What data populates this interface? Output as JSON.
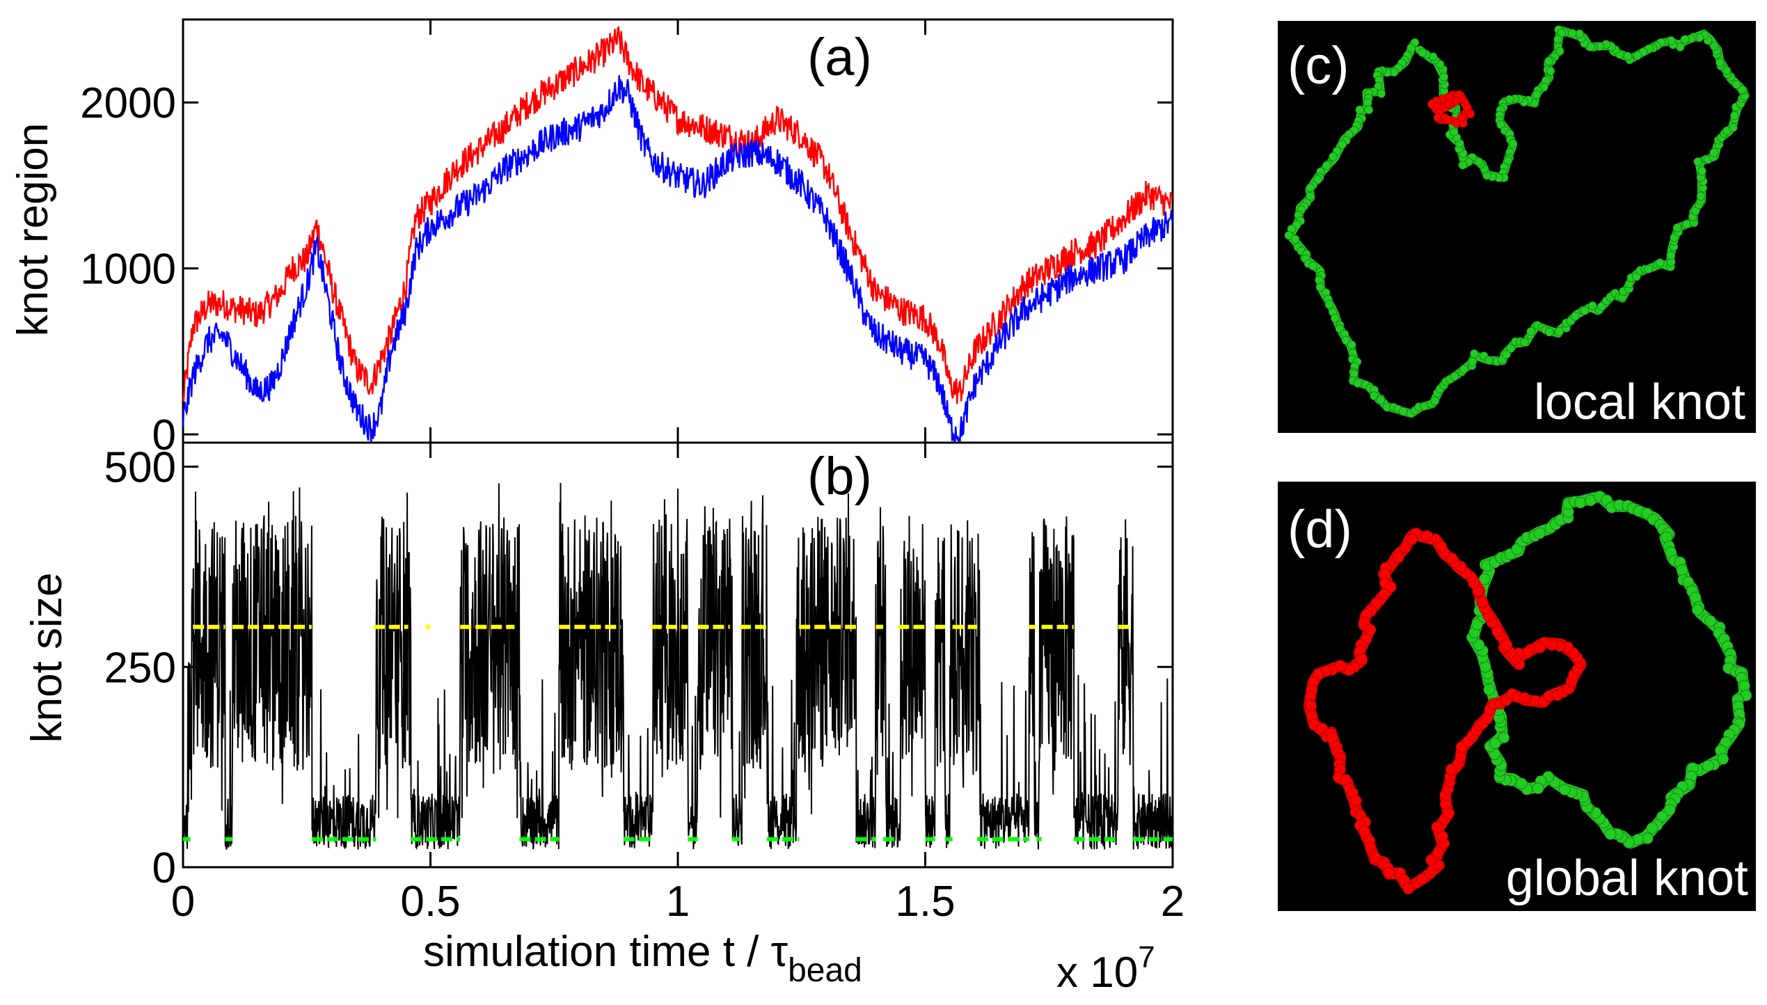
{
  "chart_data": [
    {
      "id": "a",
      "type": "line",
      "panel_label": "(a)",
      "ylabel": "knot region",
      "xlim": [
        0,
        2
      ],
      "ylim": [
        -50,
        2500
      ],
      "yticks": [
        "0",
        "1000",
        "2000"
      ],
      "ytick_values": [
        0,
        1000,
        2000
      ],
      "series": [
        {
          "name": "red",
          "color": "#ff0000",
          "x": [
            0,
            0.02,
            0.05,
            0.08,
            0.1,
            0.12,
            0.15,
            0.18,
            0.2,
            0.22,
            0.25,
            0.27,
            0.28,
            0.3,
            0.32,
            0.35,
            0.38,
            0.4,
            0.42,
            0.45,
            0.47,
            0.5,
            0.55,
            0.6,
            0.65,
            0.7,
            0.75,
            0.8,
            0.85,
            0.88,
            0.9,
            0.93,
            0.95,
            1.0,
            1.05,
            1.1,
            1.15,
            1.2,
            1.25,
            1.3,
            1.35,
            1.38,
            1.4,
            1.43,
            1.45,
            1.5,
            1.53,
            1.55,
            1.57,
            1.6,
            1.65,
            1.7,
            1.75,
            1.8,
            1.85,
            1.9,
            1.95,
            2.0
          ],
          "y": [
            200,
            650,
            780,
            790,
            760,
            750,
            720,
            800,
            870,
            1000,
            1060,
            1260,
            1150,
            900,
            700,
            400,
            300,
            450,
            600,
            900,
            1300,
            1400,
            1600,
            1720,
            1850,
            2000,
            2100,
            2200,
            2300,
            2380,
            2250,
            2100,
            2050,
            1900,
            1850,
            1800,
            1750,
            1900,
            1800,
            1600,
            1200,
            1000,
            850,
            800,
            750,
            700,
            550,
            300,
            250,
            500,
            700,
            900,
            1000,
            1100,
            1150,
            1300,
            1450,
            1380
          ]
        },
        {
          "name": "blue",
          "color": "#0000ff",
          "x": [
            0,
            0.02,
            0.05,
            0.08,
            0.1,
            0.12,
            0.15,
            0.18,
            0.2,
            0.22,
            0.25,
            0.27,
            0.28,
            0.3,
            0.32,
            0.35,
            0.38,
            0.4,
            0.42,
            0.45,
            0.47,
            0.5,
            0.55,
            0.6,
            0.65,
            0.7,
            0.75,
            0.8,
            0.85,
            0.88,
            0.9,
            0.93,
            0.95,
            1.0,
            1.05,
            1.1,
            1.15,
            1.2,
            1.25,
            1.3,
            1.35,
            1.38,
            1.4,
            1.43,
            1.45,
            1.5,
            1.53,
            1.55,
            1.57,
            1.6,
            1.65,
            1.7,
            1.75,
            1.8,
            1.85,
            1.9,
            1.95,
            2.0
          ],
          "y": [
            80,
            350,
            560,
            600,
            500,
            400,
            250,
            300,
            450,
            650,
            900,
            1130,
            1000,
            700,
            400,
            150,
            30,
            150,
            500,
            750,
            1100,
            1250,
            1350,
            1450,
            1600,
            1700,
            1800,
            1850,
            1950,
            2100,
            2050,
            1750,
            1650,
            1550,
            1500,
            1650,
            1700,
            1650,
            1500,
            1300,
            950,
            700,
            600,
            550,
            500,
            450,
            300,
            50,
            0,
            300,
            550,
            750,
            850,
            950,
            1000,
            1050,
            1200,
            1280
          ]
        }
      ]
    },
    {
      "id": "b",
      "type": "line",
      "panel_label": "(b)",
      "ylabel": "knot size",
      "xlabel": "simulation time t / τ",
      "xlabel_sub": "bead",
      "x_multiplier": "x 10",
      "x_multiplier_exp": "7",
      "xlim": [
        0,
        2
      ],
      "ylim": [
        0,
        530
      ],
      "xticks": [
        "0",
        "0.5",
        "1",
        "1.5",
        "2"
      ],
      "xtick_values": [
        0,
        0.5,
        1,
        1.5,
        2
      ],
      "yticks": [
        "0",
        "250",
        "500"
      ],
      "ytick_values": [
        0,
        250,
        500
      ],
      "series": [
        {
          "name": "knot size",
          "color": "#000000",
          "high_intervals": [
            [
              0.01,
              0.085
            ],
            [
              0.1,
              0.26
            ],
            [
              0.39,
              0.46
            ],
            [
              0.56,
              0.68
            ],
            [
              0.76,
              0.89
            ],
            [
              0.95,
              1.02
            ],
            [
              1.04,
              1.11
            ],
            [
              1.13,
              1.18
            ],
            [
              1.24,
              1.36
            ],
            [
              1.4,
              1.42
            ],
            [
              1.45,
              1.5
            ],
            [
              1.52,
              1.54
            ],
            [
              1.55,
              1.61
            ],
            [
              1.71,
              1.72
            ],
            [
              1.73,
              1.8
            ],
            [
              1.89,
              1.92
            ]
          ],
          "high_level": 300,
          "low_level": 30
        },
        {
          "name": "yellow markers",
          "color": "#ffff00",
          "level": 300,
          "segments": [
            [
              0.02,
              0.085
            ],
            [
              0.1,
              0.26
            ],
            [
              0.385,
              0.455
            ],
            [
              0.49,
              0.5
            ],
            [
              0.56,
              0.67
            ],
            [
              0.76,
              0.885
            ],
            [
              0.945,
              1.02
            ],
            [
              1.04,
              1.105
            ],
            [
              1.125,
              1.18
            ],
            [
              1.245,
              1.36
            ],
            [
              1.4,
              1.415
            ],
            [
              1.445,
              1.5
            ],
            [
              1.52,
              1.54
            ],
            [
              1.555,
              1.605
            ],
            [
              1.71,
              1.725
            ],
            [
              1.735,
              1.8
            ],
            [
              1.89,
              1.92
            ]
          ]
        },
        {
          "name": "green markers",
          "color": "#00ff00",
          "level": 35,
          "segments": [
            [
              0.0,
              0.015
            ],
            [
              0.085,
              0.1
            ],
            [
              0.26,
              0.39
            ],
            [
              0.46,
              0.56
            ],
            [
              0.68,
              0.76
            ],
            [
              0.89,
              0.945
            ],
            [
              1.02,
              1.04
            ],
            [
              1.11,
              1.125
            ],
            [
              1.18,
              1.245
            ],
            [
              1.36,
              1.4
            ],
            [
              1.415,
              1.445
            ],
            [
              1.5,
              1.52
            ],
            [
              1.54,
              1.555
            ],
            [
              1.605,
              1.71
            ],
            [
              1.725,
              1.735
            ],
            [
              1.8,
              1.89
            ],
            [
              1.92,
              2.0
            ]
          ]
        }
      ]
    }
  ],
  "panels": {
    "c": {
      "label": "(c)",
      "caption": "local knot"
    },
    "d": {
      "label": "(d)",
      "caption": "global knot"
    }
  }
}
